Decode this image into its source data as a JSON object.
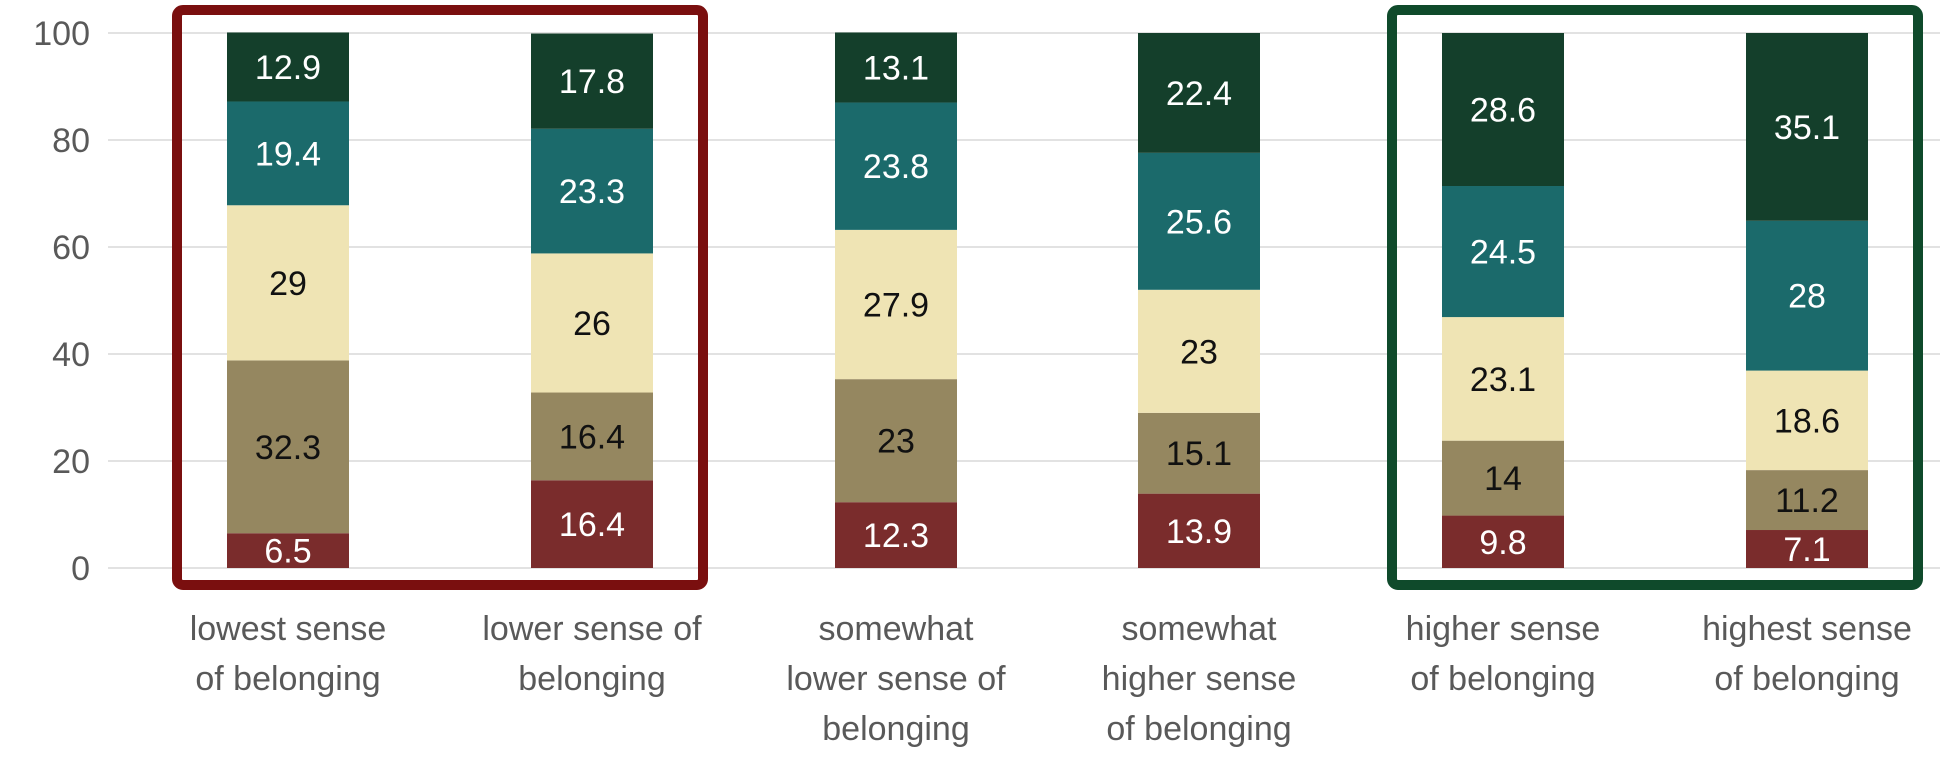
{
  "chart_data": {
    "type": "bar",
    "stacked": true,
    "categories": [
      [
        "lowest sense",
        "of belonging"
      ],
      [
        "lower sense of",
        "belonging"
      ],
      [
        "somewhat",
        "lower sense of",
        "belonging"
      ],
      [
        "somewhat",
        "higher sense",
        "of belonging"
      ],
      [
        "higher sense",
        "of belonging"
      ],
      [
        "highest sense",
        "of belonging"
      ]
    ],
    "series": [
      {
        "values": [
          6.5,
          16.4,
          12.3,
          13.9,
          9.8,
          7.1
        ],
        "color": "#7a2c2c",
        "label_color": "#ffffff"
      },
      {
        "values": [
          32.3,
          16.4,
          23,
          15.1,
          14,
          11.2
        ],
        "color": "#958760",
        "label_color": "#111111"
      },
      {
        "values": [
          29,
          26,
          27.9,
          23,
          23.1,
          18.6
        ],
        "color": "#efe4b4",
        "label_color": "#111111"
      },
      {
        "values": [
          19.4,
          23.3,
          23.8,
          25.6,
          24.5,
          28
        ],
        "color": "#1b6a6b",
        "label_color": "#ffffff"
      },
      {
        "values": [
          12.9,
          17.8,
          13.1,
          22.4,
          28.6,
          35.1
        ],
        "color": "#143f2b",
        "label_color": "#ffffff"
      }
    ],
    "y_ticks": [
      "0",
      "20",
      "40",
      "60",
      "80",
      "100"
    ],
    "ylim": [
      0,
      100
    ],
    "grid": true,
    "highlight_boxes": [
      {
        "categories": [
          0,
          1
        ],
        "color": "#7a0f0f"
      },
      {
        "categories": [
          4,
          5
        ],
        "color": "#0f4a2b"
      }
    ]
  }
}
